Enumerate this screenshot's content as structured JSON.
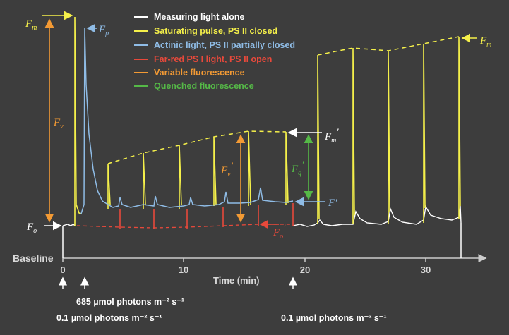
{
  "colors": {
    "background": "#3d3d3d",
    "white": "#ffffff",
    "yellow": "#f5f04a",
    "blue": "#8fbce6",
    "red": "#e8493b",
    "orange": "#f39a34",
    "green": "#55b947"
  },
  "legend": [
    {
      "label": "Measuring light alone",
      "color": "#ffffff"
    },
    {
      "label": "Saturating pulse, PS II closed",
      "color": "#f5f04a"
    },
    {
      "label": "Actinic light, PS II partially closed",
      "color": "#8fbce6"
    },
    {
      "label": "Far-red PS I light, PS II open",
      "color": "#e8493b"
    },
    {
      "label": "Variable fluorescence",
      "color": "#f39a34"
    },
    {
      "label": "Quenched fluorescence",
      "color": "#55b947"
    }
  ],
  "labels": {
    "fm": "F",
    "fm_sub": "m",
    "fp": "F",
    "fp_sub": "p",
    "fv": "F",
    "fv_sub": "v",
    "fo": "F",
    "fo_sub": "o",
    "fm_prime": "F",
    "fm_prime_sub": "m",
    "fm_prime_mark": "'",
    "fv_prime": "F",
    "fv_prime_sub": "v",
    "fv_prime_mark": "'",
    "fq_prime": "F",
    "fq_prime_sub": "q",
    "fq_prime_mark": "'",
    "f_prime": "F'",
    "fo_prime": "F",
    "fo_prime_sub": "o",
    "fo_prime_mark": "'",
    "fm_end": "F",
    "fm_end_sub": "m"
  },
  "axis": {
    "baseline_label": "Baseline",
    "x_label": "Time (min)",
    "ticks": [
      "0",
      "10",
      "20",
      "30"
    ]
  },
  "annotations": {
    "light_start": "0.1 µmol photons m⁻² s⁻¹",
    "actinic_on": "685 µmol photons m⁻² s⁻¹",
    "light_end": "0.1 µmol photons m⁻² s⁻¹"
  }
}
